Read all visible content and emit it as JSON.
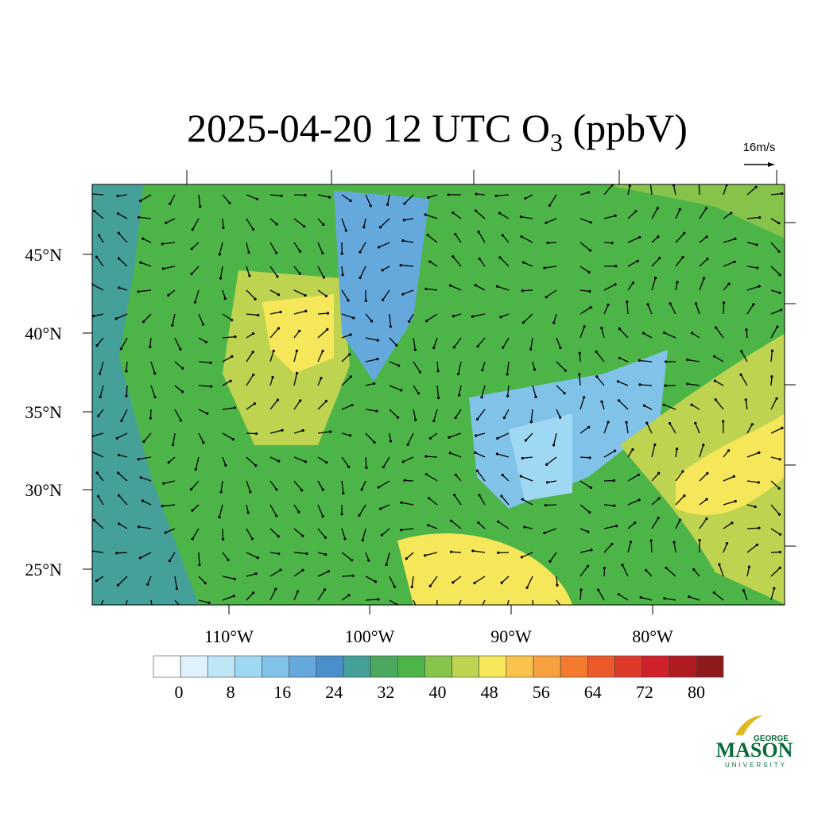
{
  "title": {
    "main": "2025-04-20 12 UTC O",
    "sub": "3",
    "unit": " (ppbV)"
  },
  "vector_reference": "16m/s",
  "lat_labels": [
    "45°N",
    "40°N",
    "35°N",
    "30°N",
    "25°N"
  ],
  "lon_labels": [
    "110°W",
    "100°W",
    "90°W",
    "80°W"
  ],
  "colorbar": {
    "colors": [
      "#ffffff",
      "#dff2fb",
      "#bfe6f7",
      "#9fd8f3",
      "#80c2e8",
      "#64a8dc",
      "#4a8ecc",
      "#45a09a",
      "#4aa85f",
      "#4db548",
      "#86c34a",
      "#bed350",
      "#f5e65a",
      "#f9c24a",
      "#f7a040",
      "#f47a30",
      "#ec5a2c",
      "#de3a2a",
      "#d0202a",
      "#b01c22",
      "#8e1a1e"
    ],
    "labels": [
      0,
      8,
      16,
      24,
      32,
      40,
      48,
      56,
      64,
      72,
      80
    ]
  },
  "logo": {
    "top": "GEORGE",
    "middle": "MASON",
    "bottom": "UNIVERSITY"
  }
}
